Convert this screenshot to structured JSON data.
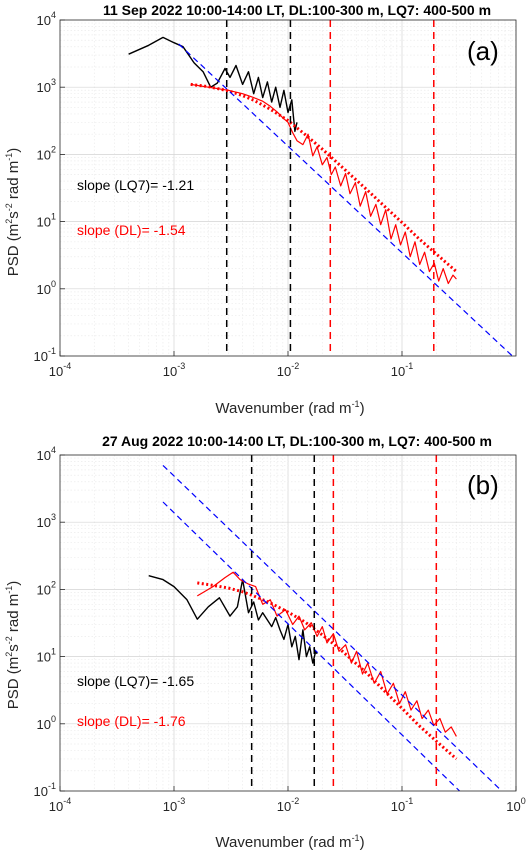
{
  "chart_data": [
    {
      "type": "line",
      "panel_label": "(a)",
      "title": "11 Sep 2022 10:00-14:00 LT, DL:100-300 m, LQ7: 400-500 m",
      "xlabel": "Wavenumber (rad m",
      "xlabel_sup": "-1",
      "xlabel_end": ")",
      "ylabel": "PSD (m",
      "ylabel_sup1": "2",
      "ylabel_mid": "s",
      "ylabel_sup2": "-2",
      "ylabel_mid2": " rad m",
      "ylabel_sup3": "-1",
      "ylabel_end": ")",
      "xscale": "log",
      "yscale": "log",
      "xlim": [
        0.0001,
        1
      ],
      "ylim": [
        0.1,
        10000
      ],
      "grid": true,
      "x_ticks": [
        {
          "base": "10",
          "exp": "-4",
          "value": 0.0001
        },
        {
          "base": "10",
          "exp": "-3",
          "value": 0.001
        },
        {
          "base": "10",
          "exp": "-2",
          "value": 0.01
        },
        {
          "base": "10",
          "exp": "-1",
          "value": 0.1
        }
      ],
      "y_ticks": [
        {
          "base": "10",
          "exp": "-1",
          "value": 0.1
        },
        {
          "base": "10",
          "exp": "0",
          "value": 1
        },
        {
          "base": "10",
          "exp": "1",
          "value": 10
        },
        {
          "base": "10",
          "exp": "2",
          "value": 100
        },
        {
          "base": "10",
          "exp": "3",
          "value": 1000
        },
        {
          "base": "10",
          "exp": "4",
          "value": 10000
        }
      ],
      "annotations": [
        {
          "text": "slope (LQ7)= -1.21",
          "color": "#000000",
          "x": 0.00018,
          "y": 40
        },
        {
          "text": "slope (DL)= -1.54",
          "color": "#ff0000",
          "x": 0.00018,
          "y": 8
        }
      ],
      "vlines": [
        {
          "x": 0.0029,
          "color": "#000000"
        },
        {
          "x": 0.0105,
          "color": "#000000"
        },
        {
          "x": 0.0235,
          "color": "#ff0000"
        },
        {
          "x": 0.19,
          "color": "#ff0000"
        }
      ],
      "series": [
        {
          "color": "#000000",
          "style": "solid",
          "width": 1.4,
          "x": [
            0.0004,
            0.0006,
            0.0008,
            0.001,
            0.0012,
            0.0015,
            0.0018,
            0.0021,
            0.0024,
            0.0028,
            0.0031,
            0.0035,
            0.004,
            0.0045,
            0.005,
            0.0055,
            0.006,
            0.0066,
            0.0072,
            0.0078,
            0.0085,
            0.0092,
            0.01,
            0.0108,
            0.0115,
            0.012
          ],
          "y": [
            3100,
            4200,
            5500,
            4600,
            4000,
            2300,
            1700,
            1000,
            1150,
            1900,
            1400,
            2100,
            1100,
            1700,
            800,
            1400,
            700,
            1200,
            600,
            1000,
            500,
            900,
            420,
            650,
            220,
            300
          ]
        },
        {
          "color": "#ff0000",
          "style": "solid",
          "width": 1.2,
          "x": [
            0.0014,
            0.002,
            0.003,
            0.004,
            0.005,
            0.006,
            0.007,
            0.008,
            0.009,
            0.01,
            0.011,
            0.012,
            0.0135,
            0.015,
            0.0165,
            0.018,
            0.02,
            0.022,
            0.024,
            0.026,
            0.029,
            0.032,
            0.035,
            0.039,
            0.043,
            0.048,
            0.053,
            0.059,
            0.065,
            0.072,
            0.08,
            0.088,
            0.097,
            0.107,
            0.118,
            0.13,
            0.143,
            0.158,
            0.174,
            0.192,
            0.21,
            0.23,
            0.255,
            0.28,
            0.3
          ],
          "y": [
            1100,
            1000,
            900,
            800,
            700,
            620,
            520,
            430,
            350,
            300,
            210,
            160,
            140,
            200,
            95,
            130,
            70,
            90,
            50,
            65,
            34,
            52,
            26,
            38,
            17,
            28,
            12,
            18,
            9,
            15,
            5.5,
            9,
            4.5,
            7,
            3.0,
            5,
            2.3,
            3.5,
            1.8,
            2.4,
            1.3,
            2.0,
            1.2,
            1.6,
            1.4
          ]
        },
        {
          "color": "#ff0000",
          "style": "dotted",
          "width": 3.0,
          "x": [
            0.0014,
            0.002,
            0.003,
            0.004,
            0.005,
            0.007,
            0.01,
            0.014,
            0.02,
            0.03,
            0.05,
            0.07,
            0.1,
            0.14,
            0.2,
            0.3
          ],
          "y": [
            1100,
            1020,
            880,
            750,
            640,
            470,
            320,
            200,
            120,
            64,
            29,
            17,
            9.7,
            5.6,
            3.3,
            1.8
          ]
        },
        {
          "color": "#0000ff",
          "style": "dashed",
          "width": 1.2,
          "x": [
            0.0011,
            0.93
          ],
          "y": [
            4400,
            0.1
          ]
        }
      ]
    },
    {
      "type": "line",
      "panel_label": "(b)",
      "title": "27 Aug 2022 10:00-14:00 LT, DL:100-300 m, LQ7: 400-500 m",
      "xlabel": "Wavenumber (rad m",
      "xlabel_sup": "-1",
      "xlabel_end": ")",
      "ylabel": "PSD (m",
      "ylabel_sup1": "2",
      "ylabel_mid": "s",
      "ylabel_sup2": "-2",
      "ylabel_mid2": " rad m",
      "ylabel_sup3": "-1",
      "ylabel_end": ")",
      "xscale": "log",
      "yscale": "log",
      "xlim": [
        0.0001,
        1
      ],
      "ylim": [
        0.1,
        10000
      ],
      "grid": true,
      "x_ticks": [
        {
          "base": "10",
          "exp": "-4",
          "value": 0.0001
        },
        {
          "base": "10",
          "exp": "-3",
          "value": 0.001
        },
        {
          "base": "10",
          "exp": "-2",
          "value": 0.01
        },
        {
          "base": "10",
          "exp": "-1",
          "value": 0.1
        },
        {
          "base": "10",
          "exp": "0",
          "value": 1
        }
      ],
      "y_ticks": [
        {
          "base": "10",
          "exp": "-1",
          "value": 0.1
        },
        {
          "base": "10",
          "exp": "0",
          "value": 1
        },
        {
          "base": "10",
          "exp": "1",
          "value": 10
        },
        {
          "base": "10",
          "exp": "2",
          "value": 100
        },
        {
          "base": "10",
          "exp": "3",
          "value": 1000
        },
        {
          "base": "10",
          "exp": "4",
          "value": 10000
        }
      ],
      "annotations": [
        {
          "text": "slope (LQ7)= -1.65",
          "color": "#000000",
          "x": 0.00018,
          "y": 5
        },
        {
          "text": "slope (DL)= -1.76",
          "color": "#ff0000",
          "x": 0.00018,
          "y": 1.5
        }
      ],
      "vlines": [
        {
          "x": 0.0048,
          "color": "#000000"
        },
        {
          "x": 0.017,
          "color": "#000000"
        },
        {
          "x": 0.025,
          "color": "#ff0000"
        },
        {
          "x": 0.2,
          "color": "#ff0000"
        }
      ],
      "series": [
        {
          "color": "#000000",
          "style": "solid",
          "width": 1.4,
          "x": [
            0.0006,
            0.0008,
            0.001,
            0.0013,
            0.0016,
            0.002,
            0.0025,
            0.0031,
            0.0036,
            0.004,
            0.0045,
            0.005,
            0.0055,
            0.006,
            0.0066,
            0.0072,
            0.0078,
            0.0085,
            0.0092,
            0.01,
            0.0108,
            0.0116,
            0.0125,
            0.0135,
            0.0145,
            0.0155,
            0.0165,
            0.0175,
            0.018
          ],
          "y": [
            160,
            140,
            110,
            70,
            36,
            55,
            75,
            40,
            55,
            140,
            45,
            65,
            35,
            45,
            35,
            28,
            38,
            25,
            18,
            30,
            14,
            20,
            9,
            25,
            10,
            14,
            8,
            12,
            11
          ]
        },
        {
          "color": "#ff0000",
          "style": "solid",
          "width": 1.2,
          "x": [
            0.0016,
            0.0022,
            0.0028,
            0.0033,
            0.0038,
            0.0045,
            0.0052,
            0.006,
            0.007,
            0.008,
            0.0095,
            0.011,
            0.0125,
            0.014,
            0.016,
            0.018,
            0.02,
            0.022,
            0.025,
            0.028,
            0.032,
            0.036,
            0.04,
            0.045,
            0.05,
            0.057,
            0.065,
            0.074,
            0.084,
            0.095,
            0.107,
            0.12,
            0.135,
            0.15,
            0.17,
            0.19,
            0.215,
            0.24,
            0.27,
            0.3
          ],
          "y": [
            80,
            110,
            150,
            180,
            140,
            120,
            110,
            60,
            70,
            40,
            50,
            30,
            40,
            25,
            32,
            20,
            28,
            16,
            22,
            12,
            15,
            8,
            12,
            5.5,
            8,
            4,
            6,
            2.8,
            4,
            2,
            3,
            1.6,
            2.2,
            1.2,
            1.6,
            0.95,
            1.2,
            0.75,
            0.9,
            0.65
          ]
        },
        {
          "color": "#ff0000",
          "style": "dotted",
          "width": 3.0,
          "x": [
            0.0016,
            0.002,
            0.003,
            0.004,
            0.005,
            0.007,
            0.01,
            0.014,
            0.02,
            0.03,
            0.05,
            0.07,
            0.1,
            0.14,
            0.2,
            0.3
          ],
          "y": [
            125,
            118,
            105,
            92,
            80,
            63,
            46,
            33,
            21,
            12,
            5.5,
            3.1,
            1.7,
            0.95,
            0.55,
            0.3
          ]
        },
        {
          "color": "#0000ff",
          "style": "dashed",
          "width": 1.2,
          "x": [
            0.0008,
            0.75
          ],
          "y": [
            7000,
            0.1
          ]
        },
        {
          "color": "#0000ff",
          "style": "dashed",
          "width": 1.2,
          "x": [
            0.0008,
            0.32
          ],
          "y": [
            2000,
            0.1
          ]
        }
      ]
    }
  ]
}
